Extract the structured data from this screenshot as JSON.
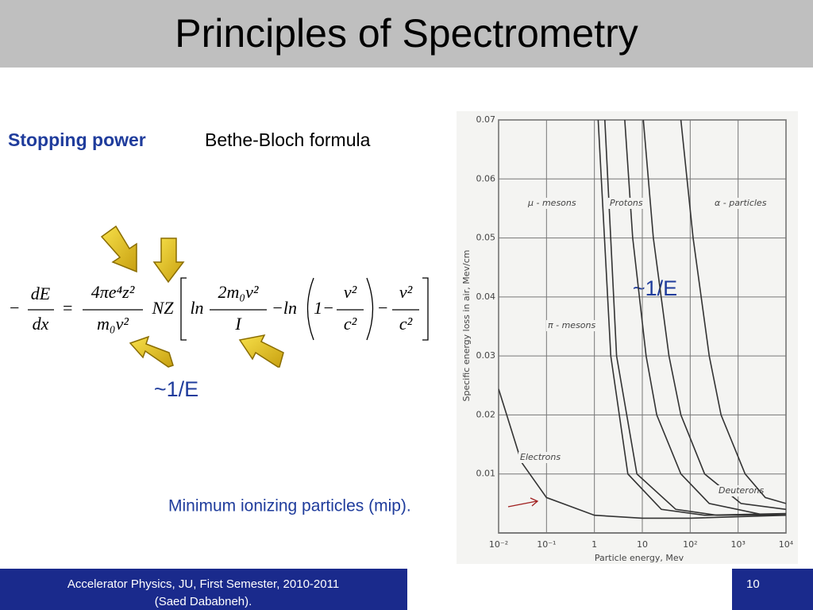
{
  "header": {
    "title": "Principles of Spectrometry"
  },
  "topic": {
    "heading": "Stopping power",
    "subheading": "Bethe-Bloch formula"
  },
  "formula": [
    "−",
    "dE",
    "dx",
    "=",
    "4πe⁴z²",
    "m₀v²",
    "NZ",
    "ln",
    "2m₀v²",
    "I",
    "−ln",
    "1−",
    "v²",
    "c²",
    "−",
    "v²",
    "c²"
  ],
  "annotations": {
    "inverse_energy_left": "~1/E",
    "inverse_energy_right": "~1/E",
    "mip": "Minimum ionizing particles (mip)."
  },
  "footer": {
    "course": "Accelerator Physics, JU, First Semester, 2010-2011",
    "author": "(Saed Dababneh).",
    "page": "10"
  },
  "chart_data": {
    "type": "line",
    "xlabel": "Particle energy,  Mev",
    "ylabel": "Specific energy loss in air,  Mev/cm",
    "xscale": "log",
    "xlim": [
      0.01,
      10000
    ],
    "ylim": [
      0,
      0.07
    ],
    "xticks": [
      {
        "value": 0.01,
        "label": "10⁻²"
      },
      {
        "value": 0.1,
        "label": "10⁻¹"
      },
      1,
      10,
      {
        "value": 100,
        "label": "10²"
      },
      {
        "value": 1000,
        "label": "10³"
      },
      {
        "value": 10000,
        "label": "10⁴"
      }
    ],
    "yticks": [
      0.01,
      0.02,
      0.03,
      0.04,
      0.05,
      0.06,
      0.07
    ],
    "grid": true,
    "series": [
      {
        "name": "Electrons",
        "color": "#333333",
        "x": [
          0.01,
          0.03,
          0.1,
          1,
          10,
          100,
          10000
        ],
        "values": [
          0.0244,
          0.012,
          0.006,
          0.003,
          0.0025,
          0.0025,
          0.003
        ]
      },
      {
        "name": "μ - mesons",
        "color": "#333333",
        "x": [
          1.2,
          2.2,
          5,
          25,
          200,
          10000
        ],
        "values": [
          0.07,
          0.03,
          0.01,
          0.004,
          0.003,
          0.0033
        ]
      },
      {
        "name": "π - mesons",
        "color": "#333333",
        "x": [
          1.65,
          2.9,
          7.7,
          50,
          360,
          10000
        ],
        "values": [
          0.07,
          0.03,
          0.01,
          0.004,
          0.003,
          0.0031
        ]
      },
      {
        "name": "Protons",
        "color": "#333333",
        "x": [
          4.3,
          6.3,
          12,
          20,
          64,
          250,
          3700,
          10000
        ],
        "values": [
          0.07,
          0.05,
          0.03,
          0.02,
          0.01,
          0.005,
          0.003,
          0.003
        ]
      },
      {
        "name": "Deuterons",
        "color": "#333333",
        "x": [
          10.5,
          17,
          36,
          64,
          200,
          1150,
          10000
        ],
        "values": [
          0.07,
          0.05,
          0.03,
          0.02,
          0.01,
          0.005,
          0.004
        ]
      },
      {
        "name": "α - particles",
        "color": "#333333",
        "x": [
          64,
          115,
          250,
          440,
          1400,
          3700,
          10000
        ],
        "values": [
          0.07,
          0.05,
          0.03,
          0.02,
          0.01,
          0.006,
          0.005
        ]
      }
    ]
  }
}
